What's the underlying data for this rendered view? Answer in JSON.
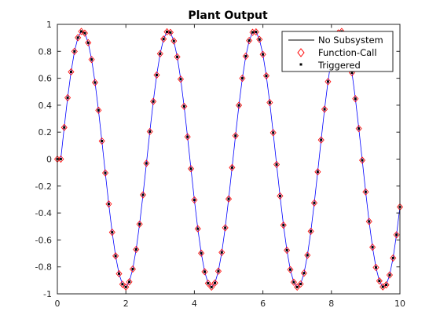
{
  "chart_data": {
    "type": "line",
    "title": "Plant Output",
    "xlabel": "",
    "ylabel": "",
    "xlim": [
      0,
      10
    ],
    "ylim": [
      -1,
      1
    ],
    "xticks": [
      0,
      2,
      4,
      6,
      8,
      10
    ],
    "yticks": [
      -1,
      -0.8,
      -0.6,
      -0.4,
      -0.2,
      0,
      0.2,
      0.4,
      0.6,
      0.8,
      1
    ],
    "ytick_labels": [
      "-1",
      "-0.8",
      "-0.6",
      "-0.4",
      "-0.2",
      "0",
      "0.2",
      "0.4",
      "0.6",
      "0.8",
      "1"
    ],
    "xtick_labels": [
      "0",
      "2",
      "4",
      "6",
      "8",
      "10"
    ],
    "grid": false,
    "legend_position": "top-right",
    "sample_time": 0.1,
    "signal": "0.95*sin(2.5*(t-0.1)), held at 0 for t<=0.1",
    "series": [
      {
        "name": "No Subsystem",
        "style": "line",
        "color": "#0000ff"
      },
      {
        "name": "Function-Call",
        "style": "diamond-marker",
        "color": "#ff0000"
      },
      {
        "name": "Triggered",
        "style": "square-marker",
        "color": "#000000"
      }
    ],
    "legend_line_color": "#000000"
  }
}
